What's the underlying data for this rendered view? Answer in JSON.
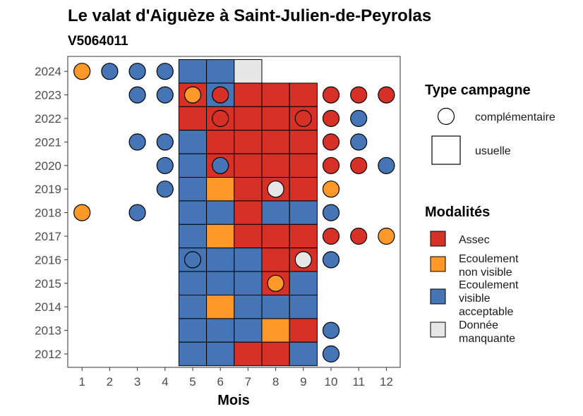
{
  "chart_data": {
    "type": "heatmap",
    "title": "Le valat d'Aiguèze à Saint-Julien-de-Peyrolas",
    "subtitle": "V5064011",
    "xlabel": "Mois",
    "ylabel": "",
    "x_ticks": [
      "1",
      "2",
      "3",
      "4",
      "5",
      "6",
      "7",
      "8",
      "9",
      "10",
      "11",
      "12"
    ],
    "y_ticks": [
      "2012",
      "2013",
      "2014",
      "2015",
      "2016",
      "2017",
      "2018",
      "2019",
      "2020",
      "2021",
      "2022",
      "2023",
      "2024"
    ],
    "colors": {
      "Assec": "#d73027",
      "Ecoulement non visible": "#fe9929",
      "Ecoulement visible acceptable": "#4575b4",
      "Donnée manquante": "#e6e6e6"
    },
    "squares": [
      {
        "year": 2024,
        "month": 5,
        "m": "Ecoulement visible acceptable"
      },
      {
        "year": 2024,
        "month": 6,
        "m": "Ecoulement visible acceptable"
      },
      {
        "year": 2024,
        "month": 7,
        "m": "Donnée manquante"
      },
      {
        "year": 2023,
        "month": 5,
        "m": "Assec"
      },
      {
        "year": 2023,
        "month": 6,
        "m": "Ecoulement visible acceptable"
      },
      {
        "year": 2023,
        "month": 7,
        "m": "Assec"
      },
      {
        "year": 2023,
        "month": 8,
        "m": "Assec"
      },
      {
        "year": 2023,
        "month": 9,
        "m": "Assec"
      },
      {
        "year": 2022,
        "month": 5,
        "m": "Assec"
      },
      {
        "year": 2022,
        "month": 6,
        "m": "Assec"
      },
      {
        "year": 2022,
        "month": 7,
        "m": "Assec"
      },
      {
        "year": 2022,
        "month": 8,
        "m": "Assec"
      },
      {
        "year": 2022,
        "month": 9,
        "m": "Assec"
      },
      {
        "year": 2021,
        "month": 5,
        "m": "Ecoulement visible acceptable"
      },
      {
        "year": 2021,
        "month": 6,
        "m": "Assec"
      },
      {
        "year": 2021,
        "month": 7,
        "m": "Assec"
      },
      {
        "year": 2021,
        "month": 8,
        "m": "Assec"
      },
      {
        "year": 2021,
        "month": 9,
        "m": "Assec"
      },
      {
        "year": 2020,
        "month": 5,
        "m": "Ecoulement visible acceptable"
      },
      {
        "year": 2020,
        "month": 6,
        "m": "Assec"
      },
      {
        "year": 2020,
        "month": 7,
        "m": "Assec"
      },
      {
        "year": 2020,
        "month": 8,
        "m": "Assec"
      },
      {
        "year": 2020,
        "month": 9,
        "m": "Assec"
      },
      {
        "year": 2019,
        "month": 5,
        "m": "Ecoulement visible acceptable"
      },
      {
        "year": 2019,
        "month": 6,
        "m": "Ecoulement non visible"
      },
      {
        "year": 2019,
        "month": 7,
        "m": "Assec"
      },
      {
        "year": 2019,
        "month": 8,
        "m": "Assec"
      },
      {
        "year": 2019,
        "month": 9,
        "m": "Assec"
      },
      {
        "year": 2018,
        "month": 5,
        "m": "Ecoulement visible acceptable"
      },
      {
        "year": 2018,
        "month": 6,
        "m": "Ecoulement visible acceptable"
      },
      {
        "year": 2018,
        "month": 7,
        "m": "Assec"
      },
      {
        "year": 2018,
        "month": 8,
        "m": "Ecoulement visible acceptable"
      },
      {
        "year": 2018,
        "month": 9,
        "m": "Ecoulement visible acceptable"
      },
      {
        "year": 2017,
        "month": 5,
        "m": "Ecoulement visible acceptable"
      },
      {
        "year": 2017,
        "month": 6,
        "m": "Ecoulement non visible"
      },
      {
        "year": 2017,
        "month": 7,
        "m": "Assec"
      },
      {
        "year": 2017,
        "month": 8,
        "m": "Assec"
      },
      {
        "year": 2017,
        "month": 9,
        "m": "Assec"
      },
      {
        "year": 2016,
        "month": 5,
        "m": "Ecoulement visible acceptable"
      },
      {
        "year": 2016,
        "month": 6,
        "m": "Ecoulement visible acceptable"
      },
      {
        "year": 2016,
        "month": 7,
        "m": "Ecoulement visible acceptable"
      },
      {
        "year": 2016,
        "month": 8,
        "m": "Assec"
      },
      {
        "year": 2016,
        "month": 9,
        "m": "Assec"
      },
      {
        "year": 2015,
        "month": 5,
        "m": "Ecoulement visible acceptable"
      },
      {
        "year": 2015,
        "month": 6,
        "m": "Ecoulement visible acceptable"
      },
      {
        "year": 2015,
        "month": 7,
        "m": "Ecoulement visible acceptable"
      },
      {
        "year": 2015,
        "month": 8,
        "m": "Assec"
      },
      {
        "year": 2015,
        "month": 9,
        "m": "Ecoulement visible acceptable"
      },
      {
        "year": 2014,
        "month": 5,
        "m": "Ecoulement visible acceptable"
      },
      {
        "year": 2014,
        "month": 6,
        "m": "Ecoulement non visible"
      },
      {
        "year": 2014,
        "month": 7,
        "m": "Ecoulement visible acceptable"
      },
      {
        "year": 2014,
        "month": 8,
        "m": "Ecoulement visible acceptable"
      },
      {
        "year": 2014,
        "month": 9,
        "m": "Ecoulement visible acceptable"
      },
      {
        "year": 2013,
        "month": 5,
        "m": "Ecoulement visible acceptable"
      },
      {
        "year": 2013,
        "month": 6,
        "m": "Ecoulement visible acceptable"
      },
      {
        "year": 2013,
        "month": 7,
        "m": "Ecoulement visible acceptable"
      },
      {
        "year": 2013,
        "month": 8,
        "m": "Ecoulement non visible"
      },
      {
        "year": 2013,
        "month": 9,
        "m": "Assec"
      },
      {
        "year": 2012,
        "month": 5,
        "m": "Ecoulement visible acceptable"
      },
      {
        "year": 2012,
        "month": 6,
        "m": "Ecoulement visible acceptable"
      },
      {
        "year": 2012,
        "month": 7,
        "m": "Assec"
      },
      {
        "year": 2012,
        "month": 8,
        "m": "Assec"
      },
      {
        "year": 2012,
        "month": 9,
        "m": "Ecoulement visible acceptable"
      }
    ],
    "circles": [
      {
        "year": 2024,
        "month": 1,
        "m": "Ecoulement non visible"
      },
      {
        "year": 2024,
        "month": 2,
        "m": "Ecoulement visible acceptable"
      },
      {
        "year": 2024,
        "month": 3,
        "m": "Ecoulement visible acceptable"
      },
      {
        "year": 2024,
        "month": 4,
        "m": "Ecoulement visible acceptable"
      },
      {
        "year": 2023,
        "month": 3,
        "m": "Ecoulement visible acceptable"
      },
      {
        "year": 2023,
        "month": 4,
        "m": "Ecoulement visible acceptable"
      },
      {
        "year": 2023,
        "month": 5,
        "m": "Ecoulement non visible"
      },
      {
        "year": 2023,
        "month": 6,
        "m": "Assec"
      },
      {
        "year": 2023,
        "month": 10,
        "m": "Assec"
      },
      {
        "year": 2023,
        "month": 11,
        "m": "Assec"
      },
      {
        "year": 2023,
        "month": 12,
        "m": "Assec"
      },
      {
        "year": 2022,
        "month": 6,
        "m": "Assec"
      },
      {
        "year": 2022,
        "month": 9,
        "m": "Assec"
      },
      {
        "year": 2022,
        "month": 10,
        "m": "Assec"
      },
      {
        "year": 2022,
        "month": 11,
        "m": "Ecoulement visible acceptable"
      },
      {
        "year": 2021,
        "month": 3,
        "m": "Ecoulement visible acceptable"
      },
      {
        "year": 2021,
        "month": 4,
        "m": "Ecoulement visible acceptable"
      },
      {
        "year": 2021,
        "month": 10,
        "m": "Assec"
      },
      {
        "year": 2021,
        "month": 11,
        "m": "Ecoulement visible acceptable"
      },
      {
        "year": 2020,
        "month": 4,
        "m": "Ecoulement visible acceptable"
      },
      {
        "year": 2020,
        "month": 6,
        "m": "Ecoulement visible acceptable"
      },
      {
        "year": 2020,
        "month": 10,
        "m": "Assec"
      },
      {
        "year": 2020,
        "month": 11,
        "m": "Assec"
      },
      {
        "year": 2020,
        "month": 12,
        "m": "Ecoulement visible acceptable"
      },
      {
        "year": 2019,
        "month": 4,
        "m": "Ecoulement visible acceptable"
      },
      {
        "year": 2019,
        "month": 8,
        "m": "Donnée manquante"
      },
      {
        "year": 2019,
        "month": 10,
        "m": "Ecoulement non visible"
      },
      {
        "year": 2018,
        "month": 1,
        "m": "Ecoulement non visible"
      },
      {
        "year": 2018,
        "month": 3,
        "m": "Ecoulement visible acceptable"
      },
      {
        "year": 2018,
        "month": 10,
        "m": "Ecoulement visible acceptable"
      },
      {
        "year": 2017,
        "month": 10,
        "m": "Assec"
      },
      {
        "year": 2017,
        "month": 11,
        "m": "Assec"
      },
      {
        "year": 2017,
        "month": 12,
        "m": "Ecoulement non visible"
      },
      {
        "year": 2016,
        "month": 5,
        "m": "Ecoulement visible acceptable"
      },
      {
        "year": 2016,
        "month": 9,
        "m": "Donnée manquante"
      },
      {
        "year": 2016,
        "month": 10,
        "m": "Ecoulement visible acceptable"
      },
      {
        "year": 2015,
        "month": 8,
        "m": "Ecoulement non visible"
      },
      {
        "year": 2013,
        "month": 10,
        "m": "Ecoulement visible acceptable"
      },
      {
        "year": 2012,
        "month": 10,
        "m": "Ecoulement visible acceptable"
      }
    ],
    "legend": {
      "type_title": "Type campagne",
      "type_items": [
        "complémentaire",
        "usuelle"
      ],
      "mod_title": "Modalités",
      "mod_items": [
        {
          "key": "Assec",
          "lines": [
            "Assec"
          ]
        },
        {
          "key": "Ecoulement non visible",
          "lines": [
            "Ecoulement",
            "non visible"
          ]
        },
        {
          "key": "Ecoulement visible acceptable",
          "lines": [
            "Ecoulement",
            "visible",
            "acceptable"
          ]
        },
        {
          "key": "Donnée manquante",
          "lines": [
            "Donnée",
            "manquante"
          ]
        }
      ],
      "placement": "right"
    }
  }
}
